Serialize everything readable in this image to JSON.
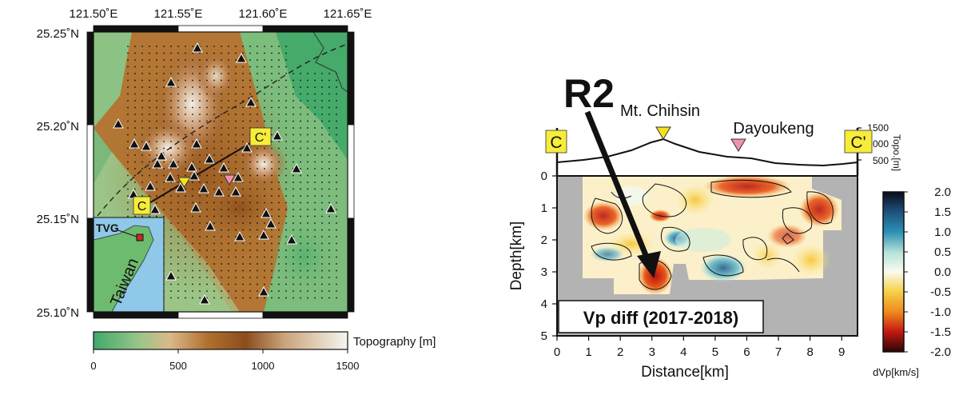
{
  "map": {
    "lon_ticks": [
      "121.50˚E",
      "121.55˚E",
      "121.60˚E",
      "121.65˚E"
    ],
    "lat_ticks": [
      "25.25˚N",
      "25.20˚N",
      "25.15˚N",
      "25.10˚N"
    ],
    "section_start": "C",
    "section_end": "C'",
    "inset_label": "TVG",
    "inset_region": "Taiwan",
    "colorbar_label": "Topography [m]",
    "colorbar_ticks": [
      "0",
      "500",
      "1000",
      "1500"
    ],
    "colors": {
      "low": "#4fae6a",
      "mid": "#a8702e",
      "high": "#f4f2ea",
      "station": "#111111"
    }
  },
  "section": {
    "annotation": "R2",
    "peak_label": "Mt. Chihsin",
    "crater_label": "Dayoukeng",
    "start_label": "C",
    "end_label": "C'",
    "topo_axis_label": "Topo.[m]",
    "topo_ticks": [
      "1500",
      "1000",
      "500"
    ],
    "panel_title": "Vp diff (2017-2018)",
    "colorbar_label": "dVp[km/s]",
    "colorbar_ticks": [
      "2.0",
      "1.5",
      "1.0",
      "0.5",
      "0.0",
      "-0.5",
      "-1.0",
      "-1.5",
      "-2.0"
    ]
  },
  "chart_data": {
    "type": "heatmap",
    "xlabel": "Distance[km]",
    "ylabel": "Depth[km]",
    "xlim": [
      0,
      9.5
    ],
    "ylim": [
      5,
      0
    ],
    "x_ticks": [
      "0",
      "1",
      "2",
      "3",
      "4",
      "5",
      "6",
      "7",
      "8",
      "9"
    ],
    "y_ticks": [
      "0",
      "1",
      "2",
      "3",
      "4",
      "5"
    ],
    "color_scale": {
      "min": -2.0,
      "max": 2.0,
      "units": "km/s"
    }
  }
}
